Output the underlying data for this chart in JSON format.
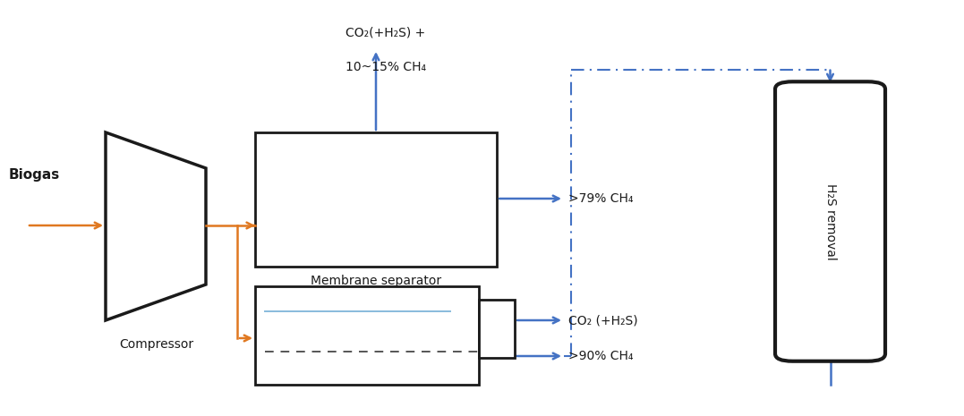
{
  "bg_color": "#ffffff",
  "orange_color": "#E07820",
  "blue_color": "#4472C4",
  "black_color": "#1a1a1a",
  "light_blue_color": "#88BBDD",
  "biogas_label": "Biogas",
  "compressor_label": "Compressor",
  "membrane_sep_label": "Membrane separator",
  "h2s_removal_label": "H₂S removal",
  "top_label_line1": "CO₂(+H₂S) +",
  "top_label_line2": "10~15% CH₄",
  "right_label_1": ">79% CH₄",
  "right_label_2": "CO₂ (+H₂S)",
  "right_label_3": ">90% CH₄"
}
